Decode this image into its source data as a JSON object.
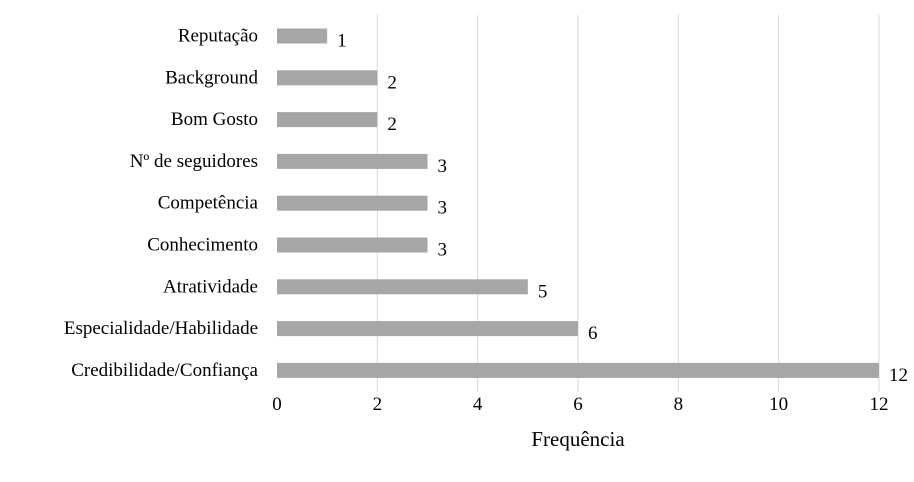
{
  "chart_data": {
    "type": "bar",
    "orientation": "horizontal",
    "title": "",
    "xlabel": "Frequência",
    "ylabel": "",
    "xlim": [
      0,
      12
    ],
    "x_ticks": [
      "0",
      "2",
      "4",
      "6",
      "8",
      "10",
      "12"
    ],
    "grid": "vertical",
    "legend": "none",
    "bar_color": "#a6a6a6",
    "grid_color": "#d9d9d9",
    "categories": [
      "Reputação",
      "Background",
      "Bom Gosto",
      "Nº de seguidores",
      "Competência",
      "Conhecimento",
      "Atratividade",
      "Especialidade/Habilidade",
      "Credibilidade/Confiança"
    ],
    "values": [
      1,
      2,
      2,
      3,
      3,
      3,
      5,
      6,
      12
    ],
    "data_labels": [
      "1",
      "2",
      "2",
      "3",
      "3",
      "3",
      "5",
      "6",
      "12"
    ]
  }
}
